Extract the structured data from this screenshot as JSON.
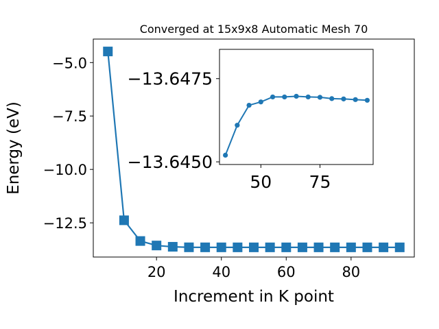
{
  "chart_data": [
    {
      "type": "line",
      "title": "Converged at 15x9x8 Automatic Mesh 70",
      "xlabel": "Increment in K point",
      "ylabel": "Energy (eV)",
      "xlim": [
        0.5,
        99.5
      ],
      "ylim": [
        -14.1,
        -3.9
      ],
      "xticks": [
        20,
        40,
        60,
        80
      ],
      "xtick_labels": [
        "20",
        "40",
        "60",
        "80"
      ],
      "yticks": [
        -5.0,
        -7.5,
        -10.0,
        -12.5
      ],
      "ytick_labels": [
        "−5.0",
        "−7.5",
        "−10.0",
        "−12.5"
      ],
      "grid": false,
      "marker": "square",
      "color": "#1f77b4",
      "series": [
        {
          "x": [
            5,
            10,
            15,
            20,
            25,
            30,
            35,
            40,
            45,
            50,
            55,
            60,
            65,
            70,
            75,
            80,
            85,
            90,
            95
          ],
          "y": [
            -4.48,
            -12.38,
            -13.35,
            -13.56,
            -13.62,
            -13.645,
            -13.646,
            -13.6464,
            -13.6467,
            -13.6468,
            -13.6469,
            -13.6469,
            -13.6469,
            -13.6469,
            -13.6469,
            -13.6469,
            -13.6469,
            -13.6469,
            -13.6469
          ]
        }
      ]
    },
    {
      "type": "line",
      "title": "",
      "xlabel": "",
      "ylabel": "",
      "xlim": [
        32.5,
        97.5
      ],
      "ylim": [
        -13.64492,
        -13.64838
      ],
      "xticks": [
        50,
        75
      ],
      "xtick_labels": [
        "50",
        "75"
      ],
      "yticks": [
        -13.6475,
        -13.645
      ],
      "ytick_labels": [
        "−13.6475",
        "−13.6450"
      ],
      "grid": false,
      "marker": "circle",
      "color": "#1f77b4",
      "series": [
        {
          "x": [
            35,
            40,
            45,
            50,
            55,
            60,
            65,
            70,
            75,
            80,
            85,
            90,
            95
          ],
          "y": [
            -13.6452,
            -13.6461,
            -13.6467,
            -13.6468,
            -13.64695,
            -13.64695,
            -13.64697,
            -13.64695,
            -13.64694,
            -13.6469,
            -13.64689,
            -13.64687,
            -13.64685
          ]
        }
      ]
    }
  ]
}
